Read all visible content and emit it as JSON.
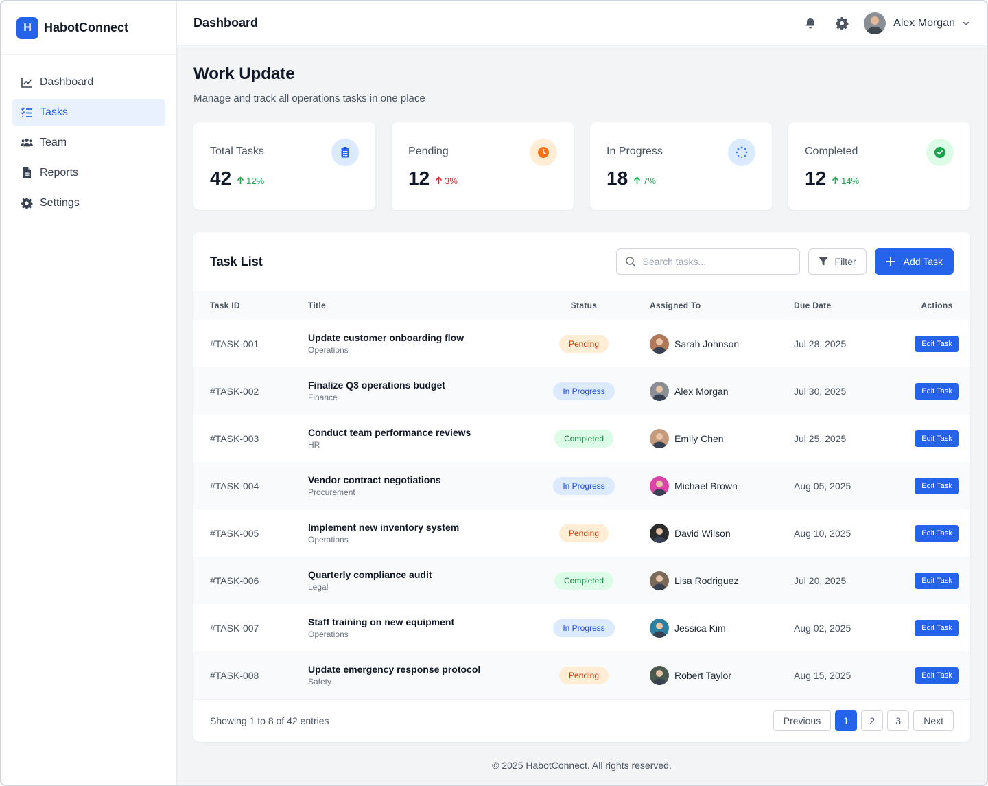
{
  "brand": {
    "logo_letter": "H",
    "name": "HabotConnect"
  },
  "sidebar": {
    "items": [
      {
        "label": "Dashboard",
        "icon": "chart-line-icon",
        "active": false
      },
      {
        "label": "Tasks",
        "icon": "tasks-icon",
        "active": true
      },
      {
        "label": "Team",
        "icon": "users-icon",
        "active": false
      },
      {
        "label": "Reports",
        "icon": "file-icon",
        "active": false
      },
      {
        "label": "Settings",
        "icon": "gear-icon",
        "active": false
      }
    ]
  },
  "topbar": {
    "title": "Dashboard",
    "user_name": "Alex Morgan"
  },
  "page": {
    "title": "Work Update",
    "subtitle": "Manage and track all operations tasks in one place"
  },
  "stats": [
    {
      "label": "Total Tasks",
      "value": "42",
      "change": "12%",
      "direction": "up",
      "tone": "positive",
      "icon": "clipboard-icon",
      "color": "#2563eb",
      "bg": "#dbeafe"
    },
    {
      "label": "Pending",
      "value": "12",
      "change": "3%",
      "direction": "up",
      "tone": "negative",
      "icon": "clock-icon",
      "color": "#f97316",
      "bg": "#ffedd5"
    },
    {
      "label": "In Progress",
      "value": "18",
      "change": "7%",
      "direction": "up",
      "tone": "positive",
      "icon": "spinner-icon",
      "color": "#3b82f6",
      "bg": "#dbeafe"
    },
    {
      "label": "Completed",
      "value": "12",
      "change": "14%",
      "direction": "up",
      "tone": "positive",
      "icon": "check-circle-icon",
      "color": "#16a34a",
      "bg": "#dcfce7"
    }
  ],
  "task_list": {
    "title": "Task List",
    "search_placeholder": "Search tasks...",
    "filter_label": "Filter",
    "add_label": "Add Task",
    "columns": [
      "Task ID",
      "Title",
      "Status",
      "Assigned To",
      "Due Date",
      "Actions"
    ],
    "rows": [
      {
        "id": "#TASK-001",
        "title": "Update customer onboarding flow",
        "category": "Operations",
        "status": "Pending",
        "assignee": "Sarah Johnson",
        "due": "Jul 28, 2025",
        "action": "Edit Task"
      },
      {
        "id": "#TASK-002",
        "title": "Finalize Q3 operations budget",
        "category": "Finance",
        "status": "In Progress",
        "assignee": "Alex Morgan",
        "due": "Jul 30, 2025",
        "action": "Edit Task"
      },
      {
        "id": "#TASK-003",
        "title": "Conduct team performance reviews",
        "category": "HR",
        "status": "Completed",
        "assignee": "Emily Chen",
        "due": "Jul 25, 2025",
        "action": "Edit Task"
      },
      {
        "id": "#TASK-004",
        "title": "Vendor contract negotiations",
        "category": "Procurement",
        "status": "In Progress",
        "assignee": "Michael Brown",
        "due": "Aug 05, 2025",
        "action": "Edit Task"
      },
      {
        "id": "#TASK-005",
        "title": "Implement new inventory system",
        "category": "Operations",
        "status": "Pending",
        "assignee": "David Wilson",
        "due": "Aug 10, 2025",
        "action": "Edit Task"
      },
      {
        "id": "#TASK-006",
        "title": "Quarterly compliance audit",
        "category": "Legal",
        "status": "Completed",
        "assignee": "Lisa Rodriguez",
        "due": "Jul 20, 2025",
        "action": "Edit Task"
      },
      {
        "id": "#TASK-007",
        "title": "Staff training on new equipment",
        "category": "Operations",
        "status": "In Progress",
        "assignee": "Jessica Kim",
        "due": "Aug 02, 2025",
        "action": "Edit Task"
      },
      {
        "id": "#TASK-008",
        "title": "Update emergency response protocol",
        "category": "Safety",
        "status": "Pending",
        "assignee": "Robert Taylor",
        "due": "Aug 15, 2025",
        "action": "Edit Task"
      }
    ],
    "entries_text": "Showing 1 to 8 of 42 entries",
    "pagination": {
      "previous": "Previous",
      "pages": [
        "1",
        "2",
        "3"
      ],
      "current_page": "1",
      "next": "Next"
    }
  },
  "avatar_colors": {
    "Sarah Johnson": "#b07a5a",
    "Alex Morgan": "#8a8f96",
    "Emily Chen": "#c49a7c",
    "Michael Brown": "#d946a8",
    "David Wilson": "#2b2b2b",
    "Lisa Rodriguez": "#7b6a5a",
    "Jessica Kim": "#2f7fa1",
    "Robert Taylor": "#4a5a4f"
  },
  "footer": {
    "text": "© 2025 HabotConnect. All rights reserved."
  }
}
